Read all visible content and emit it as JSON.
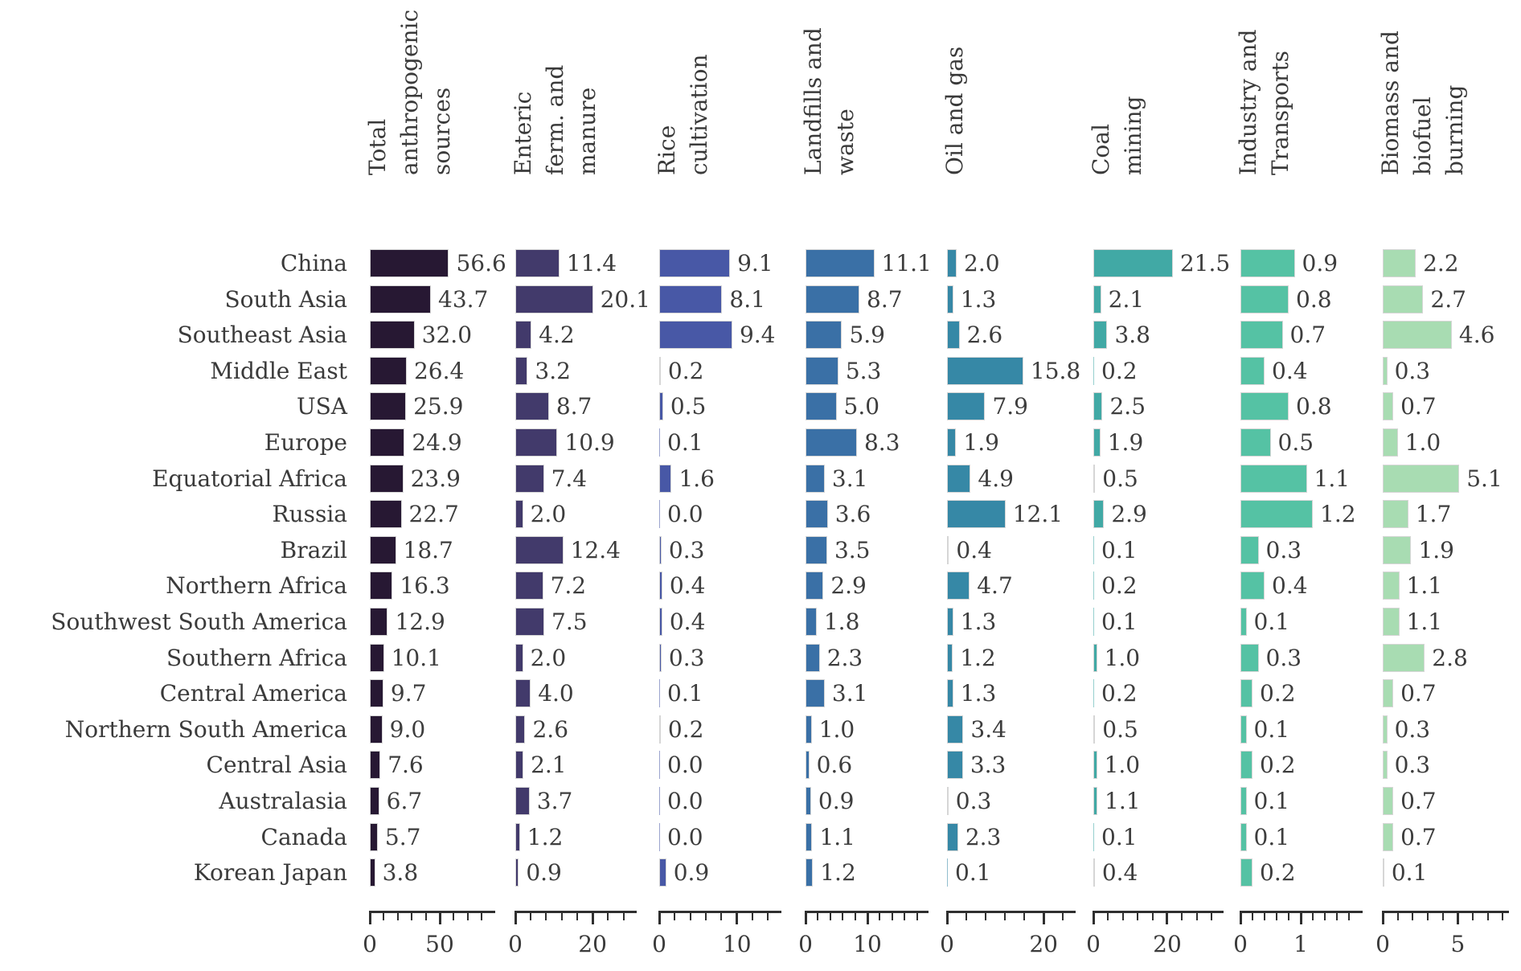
{
  "figure": {
    "background": "#ffffff",
    "text_color": "#3a3a3a",
    "axis_color": "#2f2f2f",
    "bar_edge_color": "#d6d6d6"
  },
  "chart_data": {
    "type": "bar",
    "orientation": "horizontal",
    "grid": false,
    "legend": false,
    "value_labels": "one-decimal, right of bar",
    "categories": [
      "China",
      "South Asia",
      "Southeast Asia",
      "Middle East",
      "USA",
      "Europe",
      "Equatorial Africa",
      "Russia",
      "Brazil",
      "Northern Africa",
      "Southwest South America",
      "Southern Africa",
      "Central America",
      "Northern South America",
      "Central Asia",
      "Australasia",
      "Canada",
      "Korean Japan"
    ],
    "panels": [
      {
        "label": "Total\nanthropogenic\nsources",
        "color": "#271833",
        "axis_min": 0,
        "axis_max": 88.5,
        "major_ticks": [
          {
            "value": 0,
            "label": "0"
          },
          {
            "value": 50,
            "label": "50"
          }
        ],
        "minor_ticks": [
          10,
          20,
          30,
          40,
          60,
          70,
          80
        ],
        "values": [
          56.6,
          43.7,
          32.0,
          26.4,
          25.9,
          24.9,
          23.9,
          22.7,
          18.7,
          16.3,
          12.9,
          10.1,
          9.7,
          9.0,
          7.6,
          6.7,
          5.7,
          3.8
        ]
      },
      {
        "label": "Enteric\nferm. and\nmanure",
        "color": "#423a6b",
        "axis_min": 0,
        "axis_max": 31,
        "major_ticks": [
          {
            "value": 0,
            "label": "0"
          },
          {
            "value": 20,
            "label": "20"
          }
        ],
        "minor_ticks": [
          4,
          8,
          12,
          16,
          24,
          28
        ],
        "values": [
          11.4,
          20.1,
          4.2,
          3.2,
          8.7,
          10.9,
          7.4,
          2.0,
          12.4,
          7.2,
          7.5,
          2.0,
          4.0,
          2.6,
          2.1,
          3.7,
          1.2,
          0.9
        ]
      },
      {
        "label": "Rice\ncultivation",
        "color": "#4858a6",
        "axis_min": 0,
        "axis_max": 15.5,
        "major_ticks": [
          {
            "value": 0,
            "label": "0"
          },
          {
            "value": 10,
            "label": "10"
          }
        ],
        "minor_ticks": [
          2,
          4,
          6,
          8,
          12,
          14
        ],
        "values": [
          9.1,
          8.1,
          9.4,
          0.2,
          0.5,
          0.1,
          1.6,
          0.0,
          0.3,
          0.4,
          0.4,
          0.3,
          0.1,
          0.2,
          0.0,
          0.0,
          0.0,
          0.9
        ]
      },
      {
        "label": "Landfills and\nwaste",
        "color": "#3a70a6",
        "axis_min": 0,
        "axis_max": 19.6,
        "major_ticks": [
          {
            "value": 0,
            "label": "0"
          },
          {
            "value": 10,
            "label": "10"
          }
        ],
        "minor_ticks": [
          2,
          4,
          6,
          8,
          12,
          14,
          16,
          18
        ],
        "values": [
          11.1,
          8.7,
          5.9,
          5.3,
          5.0,
          8.3,
          3.1,
          3.6,
          3.5,
          2.9,
          1.8,
          2.3,
          3.1,
          1.0,
          0.6,
          0.9,
          1.1,
          1.2
        ]
      },
      {
        "label": "Oil and gas",
        "color": "#3688a6",
        "axis_min": 0,
        "axis_max": 26.3,
        "major_ticks": [
          {
            "value": 0,
            "label": "0"
          },
          {
            "value": 20,
            "label": "20"
          }
        ],
        "minor_ticks": [
          4,
          8,
          12,
          16,
          24
        ],
        "values": [
          2.0,
          1.3,
          2.6,
          15.8,
          7.9,
          1.9,
          4.9,
          12.1,
          0.4,
          4.7,
          1.3,
          1.2,
          1.3,
          3.4,
          3.3,
          0.3,
          2.3,
          0.1
        ]
      },
      {
        "label": "Coal\nmining",
        "color": "#41a9a5",
        "axis_min": 0,
        "axis_max": 34.8,
        "major_ticks": [
          {
            "value": 0,
            "label": "0"
          },
          {
            "value": 20,
            "label": "20"
          }
        ],
        "minor_ticks": [
          4,
          8,
          12,
          16,
          24,
          28,
          32
        ],
        "values": [
          21.5,
          2.1,
          3.8,
          0.2,
          2.5,
          1.9,
          0.5,
          2.9,
          0.1,
          0.2,
          0.1,
          1.0,
          0.2,
          0.5,
          1.0,
          1.1,
          0.1,
          0.4
        ]
      },
      {
        "label": "Industry and\nTransports",
        "color": "#55c2a4",
        "axis_min": 0,
        "axis_max": 2.0,
        "major_ticks": [
          {
            "value": 0,
            "label": "0"
          },
          {
            "value": 1,
            "label": "1"
          }
        ],
        "minor_ticks": [
          0.2,
          0.4,
          0.6,
          0.8,
          1.2,
          1.4,
          1.6,
          1.8
        ],
        "values": [
          0.9,
          0.8,
          0.7,
          0.4,
          0.8,
          0.5,
          1.1,
          1.2,
          0.3,
          0.4,
          0.1,
          0.3,
          0.2,
          0.1,
          0.2,
          0.1,
          0.1,
          0.2
        ]
      },
      {
        "label": "Biomass and\nbiofuel\nburning",
        "color": "#a8dcb2",
        "axis_min": 0,
        "axis_max": 8.3,
        "major_ticks": [
          {
            "value": 0,
            "label": "0"
          },
          {
            "value": 5,
            "label": "5"
          }
        ],
        "minor_ticks": [
          1,
          2,
          3,
          4,
          6,
          7,
          8
        ],
        "values": [
          2.2,
          2.7,
          4.6,
          0.3,
          0.7,
          1.0,
          5.1,
          1.7,
          1.9,
          1.1,
          1.1,
          2.8,
          0.7,
          0.3,
          0.3,
          0.7,
          0.7,
          0.1
        ]
      }
    ]
  }
}
